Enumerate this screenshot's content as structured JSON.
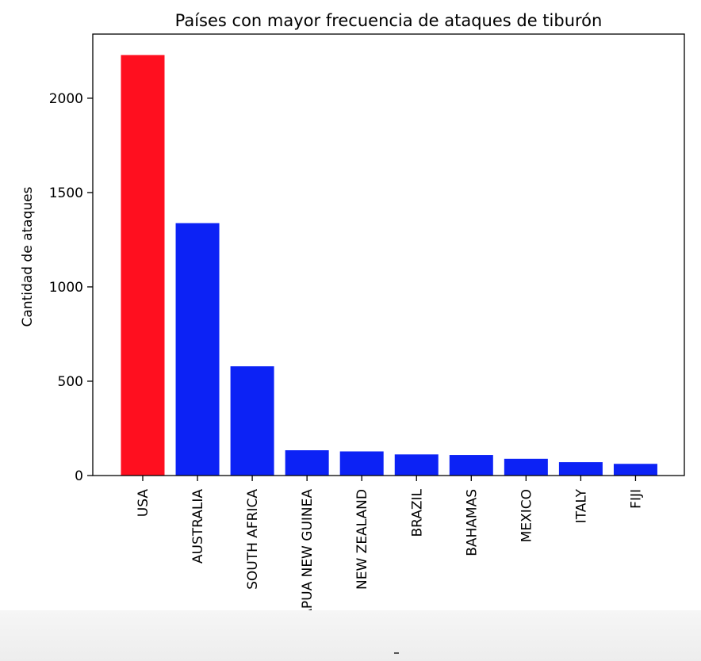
{
  "chart_data": {
    "type": "bar",
    "title": "Países con mayor frecuencia de ataques de tiburón",
    "xlabel": "",
    "ylabel": "Cantidad de ataques",
    "categories": [
      "USA",
      "AUSTRALIA",
      "SOUTH AFRICA",
      "PAPUA NEW GUINEA",
      "NEW ZEALAND",
      "BRAZIL",
      "BAHAMAS",
      "MEXICO",
      "ITALY",
      "FIJI"
    ],
    "values": [
      2229,
      1338,
      579,
      134,
      128,
      112,
      109,
      89,
      71,
      62
    ],
    "colors": [
      "#ff0f1f",
      "#0c22f5",
      "#0c22f5",
      "#0c22f5",
      "#0c22f5",
      "#0c22f5",
      "#0c22f5",
      "#0c22f5",
      "#0c22f5",
      "#0c22f5"
    ],
    "ylim": [
      0,
      2340
    ],
    "yticks": [
      0,
      500,
      1000,
      1500,
      2000
    ],
    "grid": false
  }
}
